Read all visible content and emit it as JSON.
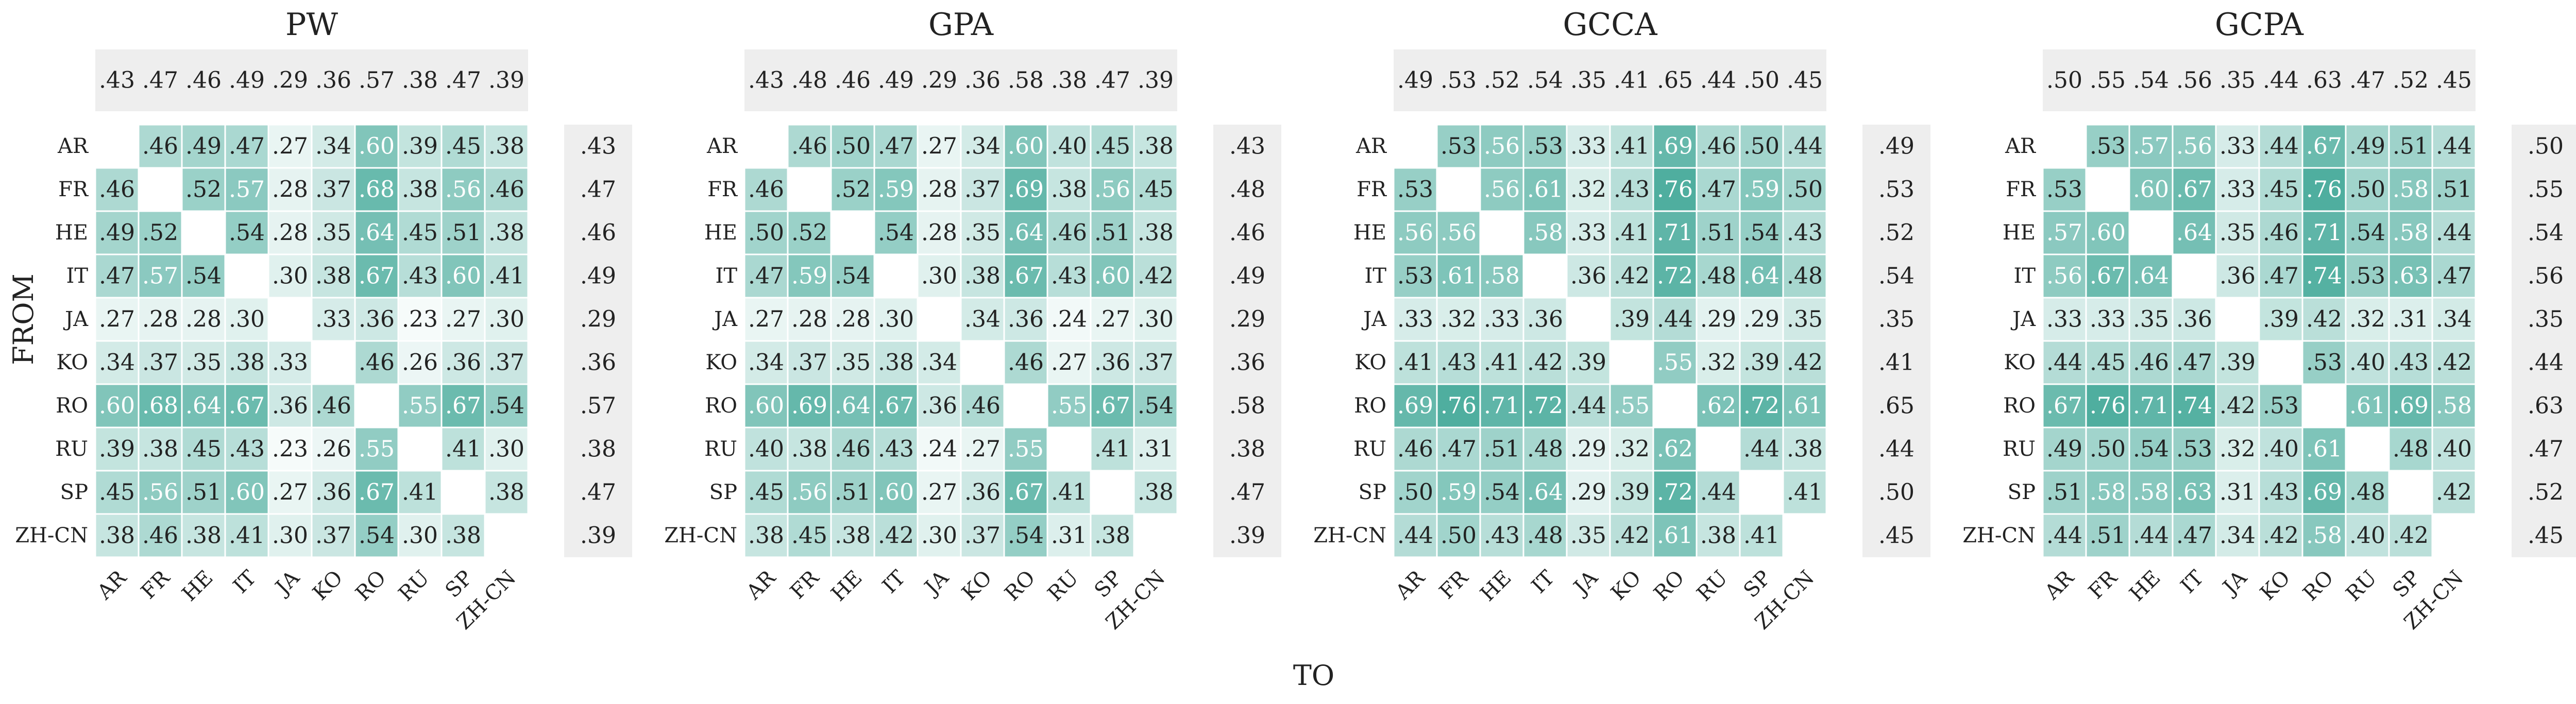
{
  "chart_data": {
    "type": "heatmap",
    "xlabel": "TO",
    "ylabel": "FROM",
    "languages": [
      "AR",
      "FR",
      "HE",
      "IT",
      "JA",
      "KO",
      "RO",
      "RU",
      "SP",
      "ZH-CN"
    ],
    "color_scale": {
      "low": "#ffffff",
      "high": "#4fae9f",
      "vmin": 0.2,
      "vmax": 0.76
    },
    "marginal_color": "#eeeeee",
    "panels": [
      {
        "title": "PW",
        "col_avg": [
          ".43",
          ".47",
          ".46",
          ".49",
          ".29",
          ".36",
          ".57",
          ".38",
          ".47",
          ".39"
        ],
        "row_avg": [
          ".43",
          ".47",
          ".46",
          ".49",
          ".29",
          ".36",
          ".57",
          ".38",
          ".47",
          ".39"
        ],
        "matrix": [
          [
            null,
            0.46,
            0.49,
            0.47,
            0.27,
            0.34,
            0.6,
            0.39,
            0.45,
            0.38
          ],
          [
            0.46,
            null,
            0.52,
            0.57,
            0.28,
            0.37,
            0.68,
            0.38,
            0.56,
            0.46
          ],
          [
            0.49,
            0.52,
            null,
            0.54,
            0.28,
            0.35,
            0.64,
            0.45,
            0.51,
            0.38
          ],
          [
            0.47,
            0.57,
            0.54,
            null,
            0.3,
            0.38,
            0.67,
            0.43,
            0.6,
            0.41
          ],
          [
            0.27,
            0.28,
            0.28,
            0.3,
            null,
            0.33,
            0.36,
            0.23,
            0.27,
            0.3
          ],
          [
            0.34,
            0.37,
            0.35,
            0.38,
            0.33,
            null,
            0.46,
            0.26,
            0.36,
            0.37
          ],
          [
            0.6,
            0.68,
            0.64,
            0.67,
            0.36,
            0.46,
            null,
            0.55,
            0.67,
            0.54
          ],
          [
            0.39,
            0.38,
            0.45,
            0.43,
            0.23,
            0.26,
            0.55,
            null,
            0.41,
            0.3
          ],
          [
            0.45,
            0.56,
            0.51,
            0.6,
            0.27,
            0.36,
            0.67,
            0.41,
            null,
            0.38
          ],
          [
            0.38,
            0.46,
            0.38,
            0.41,
            0.3,
            0.37,
            0.54,
            0.3,
            0.38,
            null
          ]
        ]
      },
      {
        "title": "GPA",
        "col_avg": [
          ".43",
          ".48",
          ".46",
          ".49",
          ".29",
          ".36",
          ".58",
          ".38",
          ".47",
          ".39"
        ],
        "row_avg": [
          ".43",
          ".48",
          ".46",
          ".49",
          ".29",
          ".36",
          ".58",
          ".38",
          ".47",
          ".39"
        ],
        "matrix": [
          [
            null,
            0.46,
            0.5,
            0.47,
            0.27,
            0.34,
            0.6,
            0.4,
            0.45,
            0.38
          ],
          [
            0.46,
            null,
            0.52,
            0.59,
            0.28,
            0.37,
            0.69,
            0.38,
            0.56,
            0.45
          ],
          [
            0.5,
            0.52,
            null,
            0.54,
            0.28,
            0.35,
            0.64,
            0.46,
            0.51,
            0.38
          ],
          [
            0.47,
            0.59,
            0.54,
            null,
            0.3,
            0.38,
            0.67,
            0.43,
            0.6,
            0.42
          ],
          [
            0.27,
            0.28,
            0.28,
            0.3,
            null,
            0.34,
            0.36,
            0.24,
            0.27,
            0.3
          ],
          [
            0.34,
            0.37,
            0.35,
            0.38,
            0.34,
            null,
            0.46,
            0.27,
            0.36,
            0.37
          ],
          [
            0.6,
            0.69,
            0.64,
            0.67,
            0.36,
            0.46,
            null,
            0.55,
            0.67,
            0.54
          ],
          [
            0.4,
            0.38,
            0.46,
            0.43,
            0.24,
            0.27,
            0.55,
            null,
            0.41,
            0.31
          ],
          [
            0.45,
            0.56,
            0.51,
            0.6,
            0.27,
            0.36,
            0.67,
            0.41,
            null,
            0.38
          ],
          [
            0.38,
            0.45,
            0.38,
            0.42,
            0.3,
            0.37,
            0.54,
            0.31,
            0.38,
            null
          ]
        ]
      },
      {
        "title": "GCCA",
        "col_avg": [
          ".49",
          ".53",
          ".52",
          ".54",
          ".35",
          ".41",
          ".65",
          ".44",
          ".50",
          ".45"
        ],
        "row_avg": [
          ".49",
          ".53",
          ".52",
          ".54",
          ".35",
          ".41",
          ".65",
          ".44",
          ".50",
          ".45"
        ],
        "matrix": [
          [
            null,
            0.53,
            0.56,
            0.53,
            0.33,
            0.41,
            0.69,
            0.46,
            0.5,
            0.44
          ],
          [
            0.53,
            null,
            0.56,
            0.61,
            0.32,
            0.43,
            0.76,
            0.47,
            0.59,
            0.5
          ],
          [
            0.56,
            0.56,
            null,
            0.58,
            0.33,
            0.41,
            0.71,
            0.51,
            0.54,
            0.43
          ],
          [
            0.53,
            0.61,
            0.58,
            null,
            0.36,
            0.42,
            0.72,
            0.48,
            0.64,
            0.48
          ],
          [
            0.33,
            0.32,
            0.33,
            0.36,
            null,
            0.39,
            0.44,
            0.29,
            0.29,
            0.35
          ],
          [
            0.41,
            0.43,
            0.41,
            0.42,
            0.39,
            null,
            0.55,
            0.32,
            0.39,
            0.42
          ],
          [
            0.69,
            0.76,
            0.71,
            0.72,
            0.44,
            0.55,
            null,
            0.62,
            0.72,
            0.61
          ],
          [
            0.46,
            0.47,
            0.51,
            0.48,
            0.29,
            0.32,
            0.62,
            null,
            0.44,
            0.38
          ],
          [
            0.5,
            0.59,
            0.54,
            0.64,
            0.29,
            0.39,
            0.72,
            0.44,
            null,
            0.41
          ],
          [
            0.44,
            0.5,
            0.43,
            0.48,
            0.35,
            0.42,
            0.61,
            0.38,
            0.41,
            null
          ]
        ]
      },
      {
        "title": "GCPA",
        "col_avg": [
          ".50",
          ".55",
          ".54",
          ".56",
          ".35",
          ".44",
          ".63",
          ".47",
          ".52",
          ".45"
        ],
        "row_avg": [
          ".50",
          ".55",
          ".54",
          ".56",
          ".35",
          ".44",
          ".63",
          ".47",
          ".52",
          ".45"
        ],
        "matrix": [
          [
            null,
            0.53,
            0.57,
            0.56,
            0.33,
            0.44,
            0.67,
            0.49,
            0.51,
            0.44
          ],
          [
            0.53,
            null,
            0.6,
            0.67,
            0.33,
            0.45,
            0.76,
            0.5,
            0.58,
            0.51
          ],
          [
            0.57,
            0.6,
            null,
            0.64,
            0.35,
            0.46,
            0.71,
            0.54,
            0.58,
            0.44
          ],
          [
            0.56,
            0.67,
            0.64,
            null,
            0.36,
            0.47,
            0.74,
            0.53,
            0.63,
            0.47
          ],
          [
            0.33,
            0.33,
            0.35,
            0.36,
            null,
            0.39,
            0.42,
            0.32,
            0.31,
            0.34
          ],
          [
            0.44,
            0.45,
            0.46,
            0.47,
            0.39,
            null,
            0.53,
            0.4,
            0.43,
            0.42
          ],
          [
            0.67,
            0.76,
            0.71,
            0.74,
            0.42,
            0.53,
            null,
            0.61,
            0.69,
            0.58
          ],
          [
            0.49,
            0.5,
            0.54,
            0.53,
            0.32,
            0.4,
            0.61,
            null,
            0.48,
            0.4
          ],
          [
            0.51,
            0.58,
            0.58,
            0.63,
            0.31,
            0.43,
            0.69,
            0.48,
            null,
            0.42
          ],
          [
            0.44,
            0.51,
            0.44,
            0.47,
            0.34,
            0.42,
            0.58,
            0.4,
            0.42,
            null
          ]
        ]
      }
    ]
  }
}
